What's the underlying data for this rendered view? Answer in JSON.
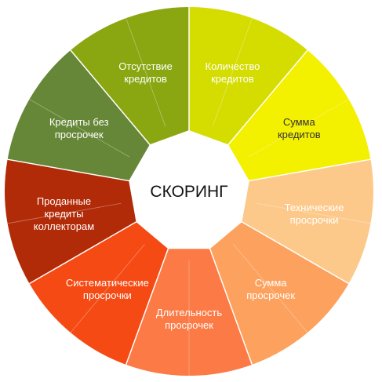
{
  "center": {
    "label": "СКОРИНГ"
  },
  "segments": [
    {
      "lines": [
        "Количество",
        "кредитов"
      ],
      "color": "#d4dc00",
      "text_color": "#ffffff"
    },
    {
      "lines": [
        "Сумма",
        "кредитов"
      ],
      "color": "#f3f000",
      "text_color": "#333333"
    },
    {
      "lines": [
        "Технические",
        "просрочки"
      ],
      "color": "#fdc98a",
      "text_color": "#ffffff"
    },
    {
      "lines": [
        "Сумма",
        "просрочек"
      ],
      "color": "#fda15e",
      "text_color": "#ffffff"
    },
    {
      "lines": [
        "Длительность",
        "просрочек"
      ],
      "color": "#fb7a46",
      "text_color": "#ffffff"
    },
    {
      "lines": [
        "Систематические",
        "просрочки"
      ],
      "color": "#f54a14",
      "text_color": "#ffffff"
    },
    {
      "lines": [
        "Проданные",
        "кредиты",
        "коллекторам"
      ],
      "color": "#b22b08",
      "text_color": "#ffffff"
    },
    {
      "lines": [
        "Кредиты без",
        "просрочек"
      ],
      "color": "#668737",
      "text_color": "#ffffff"
    },
    {
      "lines": [
        "Отсутствие",
        "кредитов"
      ],
      "color": "#8aa712",
      "text_color": "#ffffff"
    }
  ]
}
